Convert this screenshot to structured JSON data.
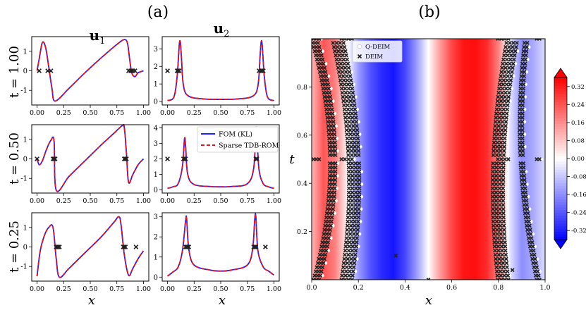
{
  "panel_labels": {
    "a": "(a)",
    "b": "(b)"
  },
  "column_titles": {
    "u1_base": "u",
    "u1_sub": "1",
    "u2_base": "u",
    "u2_sub": "2"
  },
  "colors": {
    "fom": "#1f1fff",
    "rom": "#e8101e",
    "marker": "#222222"
  },
  "chart_data": [
    {
      "type": "line",
      "panel": "(a)",
      "row_labels": [
        "t = 1.00",
        "t = 0.50",
        "t = 0.25"
      ],
      "xlabel": "x",
      "x_ticks": [
        "0.00",
        "0.25",
        "0.50",
        "0.75",
        "1.00"
      ],
      "xlim": [
        -0.05,
        1.05
      ],
      "legend": {
        "entries": [
          "FOM (KL)",
          "Sparse TDB-ROM"
        ],
        "placement": "upper-right of t = 0.50 u2 panel"
      },
      "subplots": [
        {
          "row": "t = 1.00",
          "col": "u1",
          "ylim": [
            -1.75,
            1.75
          ],
          "y_ticks": [
            "1",
            "0",
            "-1"
          ],
          "y_tick_values": [
            1,
            0,
            -1
          ],
          "curve": {
            "x": [
              0,
              0.02,
              0.05,
              0.08,
              0.11,
              0.14,
              0.17,
              0.3,
              0.45,
              0.6,
              0.75,
              0.82,
              0.85,
              0.87,
              0.89,
              0.92,
              0.95,
              1.0
            ],
            "y": [
              0,
              0.6,
              1.45,
              1.2,
              0.2,
              -0.9,
              -1.55,
              -0.9,
              -0.1,
              0.65,
              1.35,
              1.6,
              1.4,
              0.6,
              -0.1,
              -0.3,
              -0.1,
              0
            ]
          },
          "markers": {
            "x": [
              0.02,
              0.1,
              0.13,
              0.86,
              0.88,
              0.89,
              0.9,
              0.92
            ],
            "y": [
              0,
              0,
              0,
              0,
              0,
              0,
              0,
              0
            ]
          }
        },
        {
          "row": "t = 1.00",
          "col": "u2",
          "ylim": [
            -0.2,
            3.7
          ],
          "y_ticks": [
            "0",
            "1",
            "2",
            "3"
          ],
          "y_tick_values": [
            0,
            1,
            2,
            3
          ],
          "curve": {
            "x": [
              0,
              0.06,
              0.09,
              0.11,
              0.12,
              0.13,
              0.15,
              0.2,
              0.35,
              0.5,
              0.65,
              0.8,
              0.85,
              0.87,
              0.88,
              0.89,
              0.91,
              0.94,
              1.0
            ],
            "y": [
              0.05,
              0.25,
              1.4,
              3.2,
              3.4,
              2.6,
              0.9,
              0.3,
              0.14,
              0.12,
              0.14,
              0.3,
              0.9,
              2.6,
              3.4,
              3.2,
              1.4,
              0.25,
              0.05
            ]
          },
          "markers": {
            "x": [
              0.0,
              0.09,
              0.1,
              0.11,
              0.86,
              0.88,
              0.89,
              0.9
            ],
            "y": [
              1.75,
              1.75,
              1.75,
              1.75,
              1.75,
              1.75,
              1.75,
              1.75
            ]
          }
        },
        {
          "row": "t = 0.50",
          "col": "u1",
          "ylim": [
            -1.75,
            1.75
          ],
          "y_ticks": [
            "1",
            "0",
            "-1"
          ],
          "y_tick_values": [
            1,
            0,
            -1
          ],
          "curve": {
            "x": [
              0,
              0.02,
              0.05,
              0.09,
              0.13,
              0.16,
              0.18,
              0.3,
              0.45,
              0.6,
              0.72,
              0.8,
              0.82,
              0.84,
              0.86,
              0.9,
              0.95,
              1.0
            ],
            "y": [
              0,
              -0.3,
              -0.1,
              0.5,
              0.95,
              0.9,
              -1.6,
              -0.9,
              -0.1,
              0.7,
              1.3,
              1.7,
              1.6,
              0.3,
              -1.2,
              -0.8,
              -0.3,
              0
            ]
          },
          "markers": {
            "x": [
              0.0,
              0.15,
              0.16,
              0.17,
              0.82,
              0.83,
              0.84
            ],
            "y": [
              0,
              0,
              0,
              0,
              0,
              0,
              0
            ]
          }
        },
        {
          "row": "t = 0.50",
          "col": "u2",
          "ylim": [
            -0.2,
            4.2
          ],
          "y_ticks": [
            "0",
            "1",
            "2",
            "3",
            "4"
          ],
          "y_tick_values": [
            0,
            1,
            2,
            3,
            4
          ],
          "curve": {
            "x": [
              0,
              0.05,
              0.1,
              0.14,
              0.16,
              0.17,
              0.19,
              0.25,
              0.4,
              0.5,
              0.6,
              0.75,
              0.81,
              0.83,
              0.84,
              0.86,
              0.9,
              0.95,
              1.0
            ],
            "y": [
              0.1,
              0.2,
              0.4,
              1.5,
              3.3,
              2.8,
              1.0,
              0.35,
              0.22,
              0.2,
              0.22,
              0.4,
              1.4,
              3.9,
              3.5,
              1.3,
              0.4,
              0.2,
              0.1
            ]
          },
          "markers": {
            "x": [
              0.0,
              0.15,
              0.16,
              0.17,
              0.83,
              0.84
            ],
            "y": [
              2,
              2,
              2,
              2,
              2,
              2
            ]
          }
        },
        {
          "row": "t = 0.25",
          "col": "u1",
          "ylim": [
            -1.75,
            1.75
          ],
          "y_ticks": [
            "1",
            "0",
            "-1"
          ],
          "y_tick_values": [
            1,
            0,
            -1
          ],
          "curve": {
            "x": [
              0,
              0.03,
              0.07,
              0.11,
              0.15,
              0.18,
              0.21,
              0.3,
              0.45,
              0.6,
              0.72,
              0.77,
              0.79,
              0.82,
              0.86,
              0.9,
              0.95,
              1.0
            ],
            "y": [
              -1.5,
              -0.2,
              0.6,
              1.0,
              1.0,
              -0.6,
              -1.55,
              -1.1,
              -0.3,
              0.5,
              1.25,
              1.55,
              1.1,
              -0.4,
              -1.45,
              -1.1,
              -0.6,
              -0.2
            ]
          },
          "markers": {
            "x": [
              0.18,
              0.19,
              0.2,
              0.21,
              0.81,
              0.82,
              0.83,
              0.93
            ],
            "y": [
              0,
              0,
              0,
              0,
              0,
              0,
              0,
              0
            ]
          }
        },
        {
          "row": "t = 0.25",
          "col": "u2",
          "ylim": [
            -0.2,
            3.2
          ],
          "y_ticks": [
            "0",
            "1",
            "2",
            "3"
          ],
          "y_tick_values": [
            0,
            1,
            2,
            3
          ],
          "curve": {
            "x": [
              0,
              0.05,
              0.1,
              0.14,
              0.17,
              0.18,
              0.2,
              0.25,
              0.4,
              0.5,
              0.6,
              0.75,
              0.8,
              0.82,
              0.83,
              0.85,
              0.9,
              0.95,
              1.0
            ],
            "y": [
              0.05,
              0.25,
              0.5,
              1.3,
              2.8,
              2.9,
              1.4,
              0.6,
              0.35,
              0.3,
              0.35,
              0.6,
              1.4,
              2.9,
              3.0,
              1.3,
              0.5,
              0.3,
              0.1
            ]
          },
          "markers": {
            "x": [
              0.17,
              0.18,
              0.19,
              0.2,
              0.81,
              0.82,
              0.83,
              0.92
            ],
            "y": [
              1.5,
              1.5,
              1.5,
              1.5,
              1.5,
              1.5,
              1.5,
              1.5
            ]
          }
        }
      ]
    },
    {
      "type": "heatmap",
      "panel": "(b)",
      "xlabel": "x",
      "ylabel": "t",
      "xlim": [
        0,
        1
      ],
      "ylim": [
        0,
        1
      ],
      "x_ticks": [
        "0.0",
        "0.2",
        "0.4",
        "0.6",
        "0.8",
        "1.0"
      ],
      "y_ticks": [
        "0.2",
        "0.4",
        "0.6",
        "0.8"
      ],
      "y_tick_values": [
        0.2,
        0.4,
        0.6,
        0.8
      ],
      "colorbar": {
        "ticks": [
          "0.32",
          "0.24",
          "0.16",
          "0.08",
          "0.00",
          "-0.08",
          "-0.16",
          "-0.24",
          "-0.32"
        ],
        "tick_values": [
          0.32,
          0.24,
          0.16,
          0.08,
          0,
          -0.08,
          -0.16,
          -0.24,
          -0.32
        ],
        "range": [
          -0.36,
          0.36
        ]
      },
      "legend": {
        "entries": [
          "Q-DEIM",
          "DEIM"
        ],
        "placement": "top-left"
      },
      "field": {
        "description_values": "stationary x-profile",
        "x": [
          0.0,
          0.05,
          0.1,
          0.15,
          0.2,
          0.25,
          0.3,
          0.35,
          0.4,
          0.45,
          0.5,
          0.55,
          0.6,
          0.65,
          0.7,
          0.75,
          0.8,
          0.85,
          0.9,
          0.95,
          1.0
        ],
        "v": [
          0.1,
          0.24,
          0.18,
          0.02,
          -0.14,
          -0.24,
          -0.3,
          -0.33,
          -0.26,
          -0.14,
          0.0,
          0.14,
          0.26,
          0.33,
          0.34,
          0.3,
          0.18,
          -0.04,
          -0.16,
          -0.12,
          -0.05
        ]
      },
      "bands": [
        {
          "x_t0": 0.02,
          "x_t1": 0.01,
          "x_tmid": 0.09,
          "spread": 0.012,
          "count": 3
        },
        {
          "x_t0": 0.15,
          "x_t1": 0.11,
          "x_tmid": 0.18,
          "spread": 0.015,
          "count": 4
        },
        {
          "x_t0": 0.82,
          "x_t1": 0.86,
          "x_tmid": 0.8,
          "spread": 0.015,
          "count": 4
        },
        {
          "x_t0": 0.97,
          "x_t1": 0.92,
          "x_tmid": 0.9,
          "spread": 0.012,
          "count": 2
        }
      ],
      "stray_markers": {
        "x": [
          0.36,
          0.5,
          0.86
        ],
        "t": [
          0.1,
          0.0,
          0.04
        ]
      }
    }
  ]
}
